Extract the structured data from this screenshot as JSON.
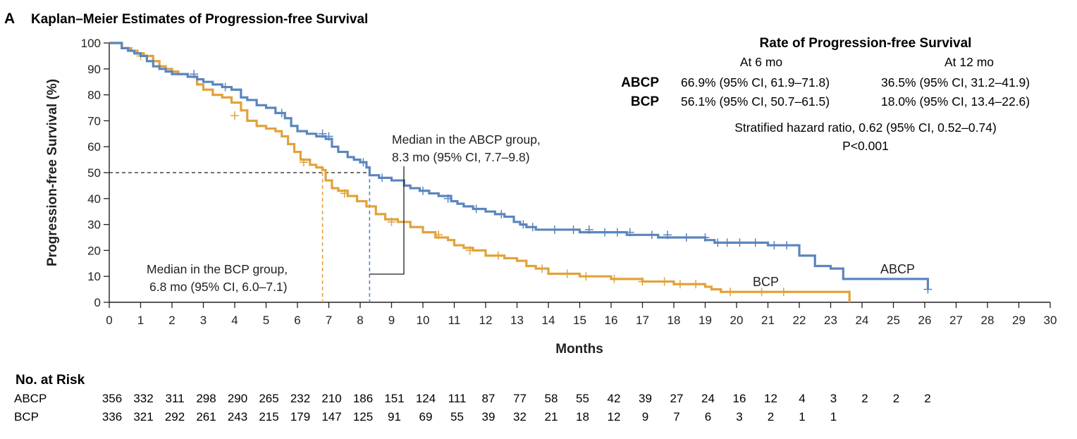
{
  "panel": {
    "letter": "A",
    "title": "Kaplan–Meier Estimates of Progression-free Survival"
  },
  "rates": {
    "title": "Rate of Progression-free Survival",
    "col_headers": [
      "At 6 mo",
      "At 12 mo"
    ],
    "rows": [
      {
        "label": "ABCP",
        "at6": "66.9% (95% CI, 61.9–71.8)",
        "at12": "36.5% (95% CI, 31.2–41.9)"
      },
      {
        "label": "BCP",
        "at6": "56.1% (95% CI, 50.7–61.5)",
        "at12": "18.0% (95% CI, 13.4–22.6)"
      }
    ],
    "hazard": "Stratified hazard ratio, 0.62 (95% CI, 0.52–0.74)",
    "pvalue": "P<0.001"
  },
  "annotations": {
    "abcp_median_line1": "Median in the ABCP group,",
    "abcp_median_line2": "8.3 mo (95% CI, 7.7–9.8)",
    "bcp_median_line1": "Median in the BCP group,",
    "bcp_median_line2": "6.8 mo (95% CI, 6.0–7.1)"
  },
  "chart_data": {
    "type": "line",
    "subtype": "kaplan-meier step",
    "title": "Kaplan–Meier Estimates of Progression-free Survival",
    "xlabel": "Months",
    "ylabel": "Progression-free Survival (%)",
    "xlim": [
      0,
      30
    ],
    "ylim": [
      0,
      100
    ],
    "x_ticks": [
      0,
      1,
      2,
      3,
      4,
      5,
      6,
      7,
      8,
      9,
      10,
      11,
      12,
      13,
      14,
      15,
      16,
      17,
      18,
      19,
      20,
      21,
      22,
      23,
      24,
      25,
      26,
      27,
      28,
      29,
      30
    ],
    "y_ticks": [
      0,
      10,
      20,
      30,
      40,
      50,
      60,
      70,
      80,
      90,
      100
    ],
    "grid": false,
    "medians": {
      "ABCP": 8.3,
      "BCP": 6.8,
      "reference_y": 50
    },
    "series": [
      {
        "name": "ABCP",
        "color": "#5b85bd",
        "x": [
          0,
          0.4,
          0.6,
          0.8,
          1.0,
          1.2,
          1.4,
          1.6,
          1.8,
          2.0,
          2.2,
          2.5,
          2.8,
          3.0,
          3.3,
          3.6,
          3.9,
          4.2,
          4.4,
          4.7,
          5.0,
          5.3,
          5.6,
          5.8,
          6.0,
          6.3,
          6.6,
          6.9,
          7.1,
          7.3,
          7.6,
          7.8,
          8.0,
          8.2,
          8.3,
          8.6,
          9.0,
          9.4,
          9.6,
          9.9,
          10.2,
          10.5,
          10.9,
          11.1,
          11.3,
          11.6,
          12.0,
          12.3,
          12.6,
          12.9,
          13.1,
          13.3,
          13.6,
          14.0,
          14.5,
          15.0,
          15.5,
          16.0,
          16.5,
          17.0,
          17.5,
          18.0,
          18.5,
          19.0,
          19.3,
          19.6,
          20.0,
          20.5,
          21.0,
          21.5,
          21.8,
          22.0,
          22.5,
          23.0,
          23.4,
          25.0,
          26.0,
          26.1
        ],
        "y": [
          100,
          98,
          97,
          96,
          95,
          93,
          91,
          90,
          89,
          88,
          88,
          87,
          86,
          85,
          84,
          83,
          82,
          79,
          78,
          76,
          75,
          73,
          71,
          68,
          66,
          65,
          64,
          63,
          60,
          58,
          56,
          55,
          54,
          52,
          49,
          48,
          47,
          45,
          44,
          43,
          42,
          41,
          39,
          38,
          37,
          36,
          35,
          34,
          33,
          31,
          30,
          29,
          28,
          28,
          28,
          27,
          27,
          27,
          26,
          26,
          25,
          25,
          25,
          24,
          23,
          23,
          23,
          23,
          22,
          22,
          22,
          18,
          14,
          13,
          9,
          9,
          9,
          5
        ],
        "censor_x": [
          2.7,
          3.7,
          5.5,
          6.8,
          7.0,
          8.1,
          8.7,
          10.0,
          10.8,
          11.7,
          12.5,
          13.2,
          13.5,
          14.2,
          14.8,
          15.3,
          15.8,
          16.2,
          16.6,
          17.3,
          17.8,
          18.4,
          19.0,
          19.4,
          19.7,
          20.1,
          20.6,
          21.2,
          21.6,
          26.1
        ],
        "censor_y": [
          88,
          83,
          73,
          65,
          64,
          54,
          48,
          43,
          40,
          36,
          34,
          30,
          29,
          28,
          28,
          28,
          27,
          27,
          27,
          26,
          26,
          25,
          25,
          23,
          23,
          23,
          23,
          22,
          22,
          5
        ]
      },
      {
        "name": "BCP",
        "color": "#e2a23a",
        "x": [
          0,
          0.4,
          0.7,
          0.9,
          1.1,
          1.4,
          1.6,
          1.8,
          2.0,
          2.2,
          2.5,
          2.8,
          3.0,
          3.3,
          3.6,
          3.9,
          4.2,
          4.4,
          4.7,
          5.0,
          5.3,
          5.5,
          5.7,
          5.9,
          6.1,
          6.4,
          6.6,
          6.8,
          6.9,
          7.1,
          7.3,
          7.6,
          7.9,
          8.2,
          8.5,
          8.8,
          9.2,
          9.6,
          10.0,
          10.4,
          10.8,
          11.0,
          11.3,
          11.6,
          12.0,
          12.3,
          12.6,
          13.0,
          13.3,
          13.6,
          14.0,
          14.5,
          15.0,
          15.5,
          16.0,
          16.5,
          17.0,
          17.5,
          18.0,
          18.5,
          19.0,
          19.2,
          19.5,
          20.0,
          21.0,
          22.0,
          23.0,
          23.5,
          23.6
        ],
        "y": [
          100,
          98,
          97,
          96,
          95,
          93,
          91,
          90,
          89,
          88,
          87,
          84,
          82,
          80,
          79,
          77,
          74,
          70,
          68,
          67,
          66,
          64,
          61,
          58,
          55,
          53,
          52,
          51,
          47,
          44,
          43,
          41,
          39,
          37,
          34,
          32,
          31,
          29,
          27,
          25,
          24,
          22,
          21,
          20,
          18,
          18,
          17,
          16,
          14,
          13,
          11,
          11,
          10,
          10,
          9,
          9,
          8,
          8,
          7,
          7,
          6,
          5,
          4,
          4,
          4,
          4,
          4,
          4,
          0
        ],
        "censor_x": [
          1.0,
          4.0,
          6.2,
          7.5,
          9.0,
          10.5,
          11.5,
          12.4,
          13.8,
          14.6,
          15.2,
          16.1,
          17.0,
          17.7,
          18.2,
          18.7,
          19.8,
          20.8,
          21.5
        ],
        "censor_y": [
          95,
          72,
          54,
          42,
          31,
          26,
          20,
          18,
          13,
          11,
          10,
          9,
          8,
          8,
          7,
          7,
          4,
          4,
          4
        ]
      }
    ],
    "legend": "inline labels near the curves",
    "number_at_risk": {
      "title": "No. at Risk",
      "time_points": [
        0,
        1,
        2,
        3,
        4,
        5,
        6,
        7,
        8,
        9,
        10,
        11,
        12,
        13,
        14,
        15,
        16,
        17,
        18,
        19,
        20,
        21,
        22,
        23,
        24,
        25,
        26
      ],
      "rows": [
        {
          "label": "ABCP",
          "values": [
            "356",
            "332",
            "311",
            "298",
            "290",
            "265",
            "232",
            "210",
            "186",
            "151",
            "124",
            "111",
            "87",
            "77",
            "58",
            "55",
            "42",
            "39",
            "27",
            "24",
            "16",
            "12",
            "4",
            "3",
            "2",
            "2",
            "2"
          ]
        },
        {
          "label": "BCP",
          "values": [
            "336",
            "321",
            "292",
            "261",
            "243",
            "215",
            "179",
            "147",
            "125",
            "91",
            "69",
            "55",
            "39",
            "32",
            "21",
            "18",
            "12",
            "9",
            "7",
            "6",
            "3",
            "2",
            "1",
            "1",
            "",
            "",
            ""
          ]
        }
      ]
    }
  }
}
